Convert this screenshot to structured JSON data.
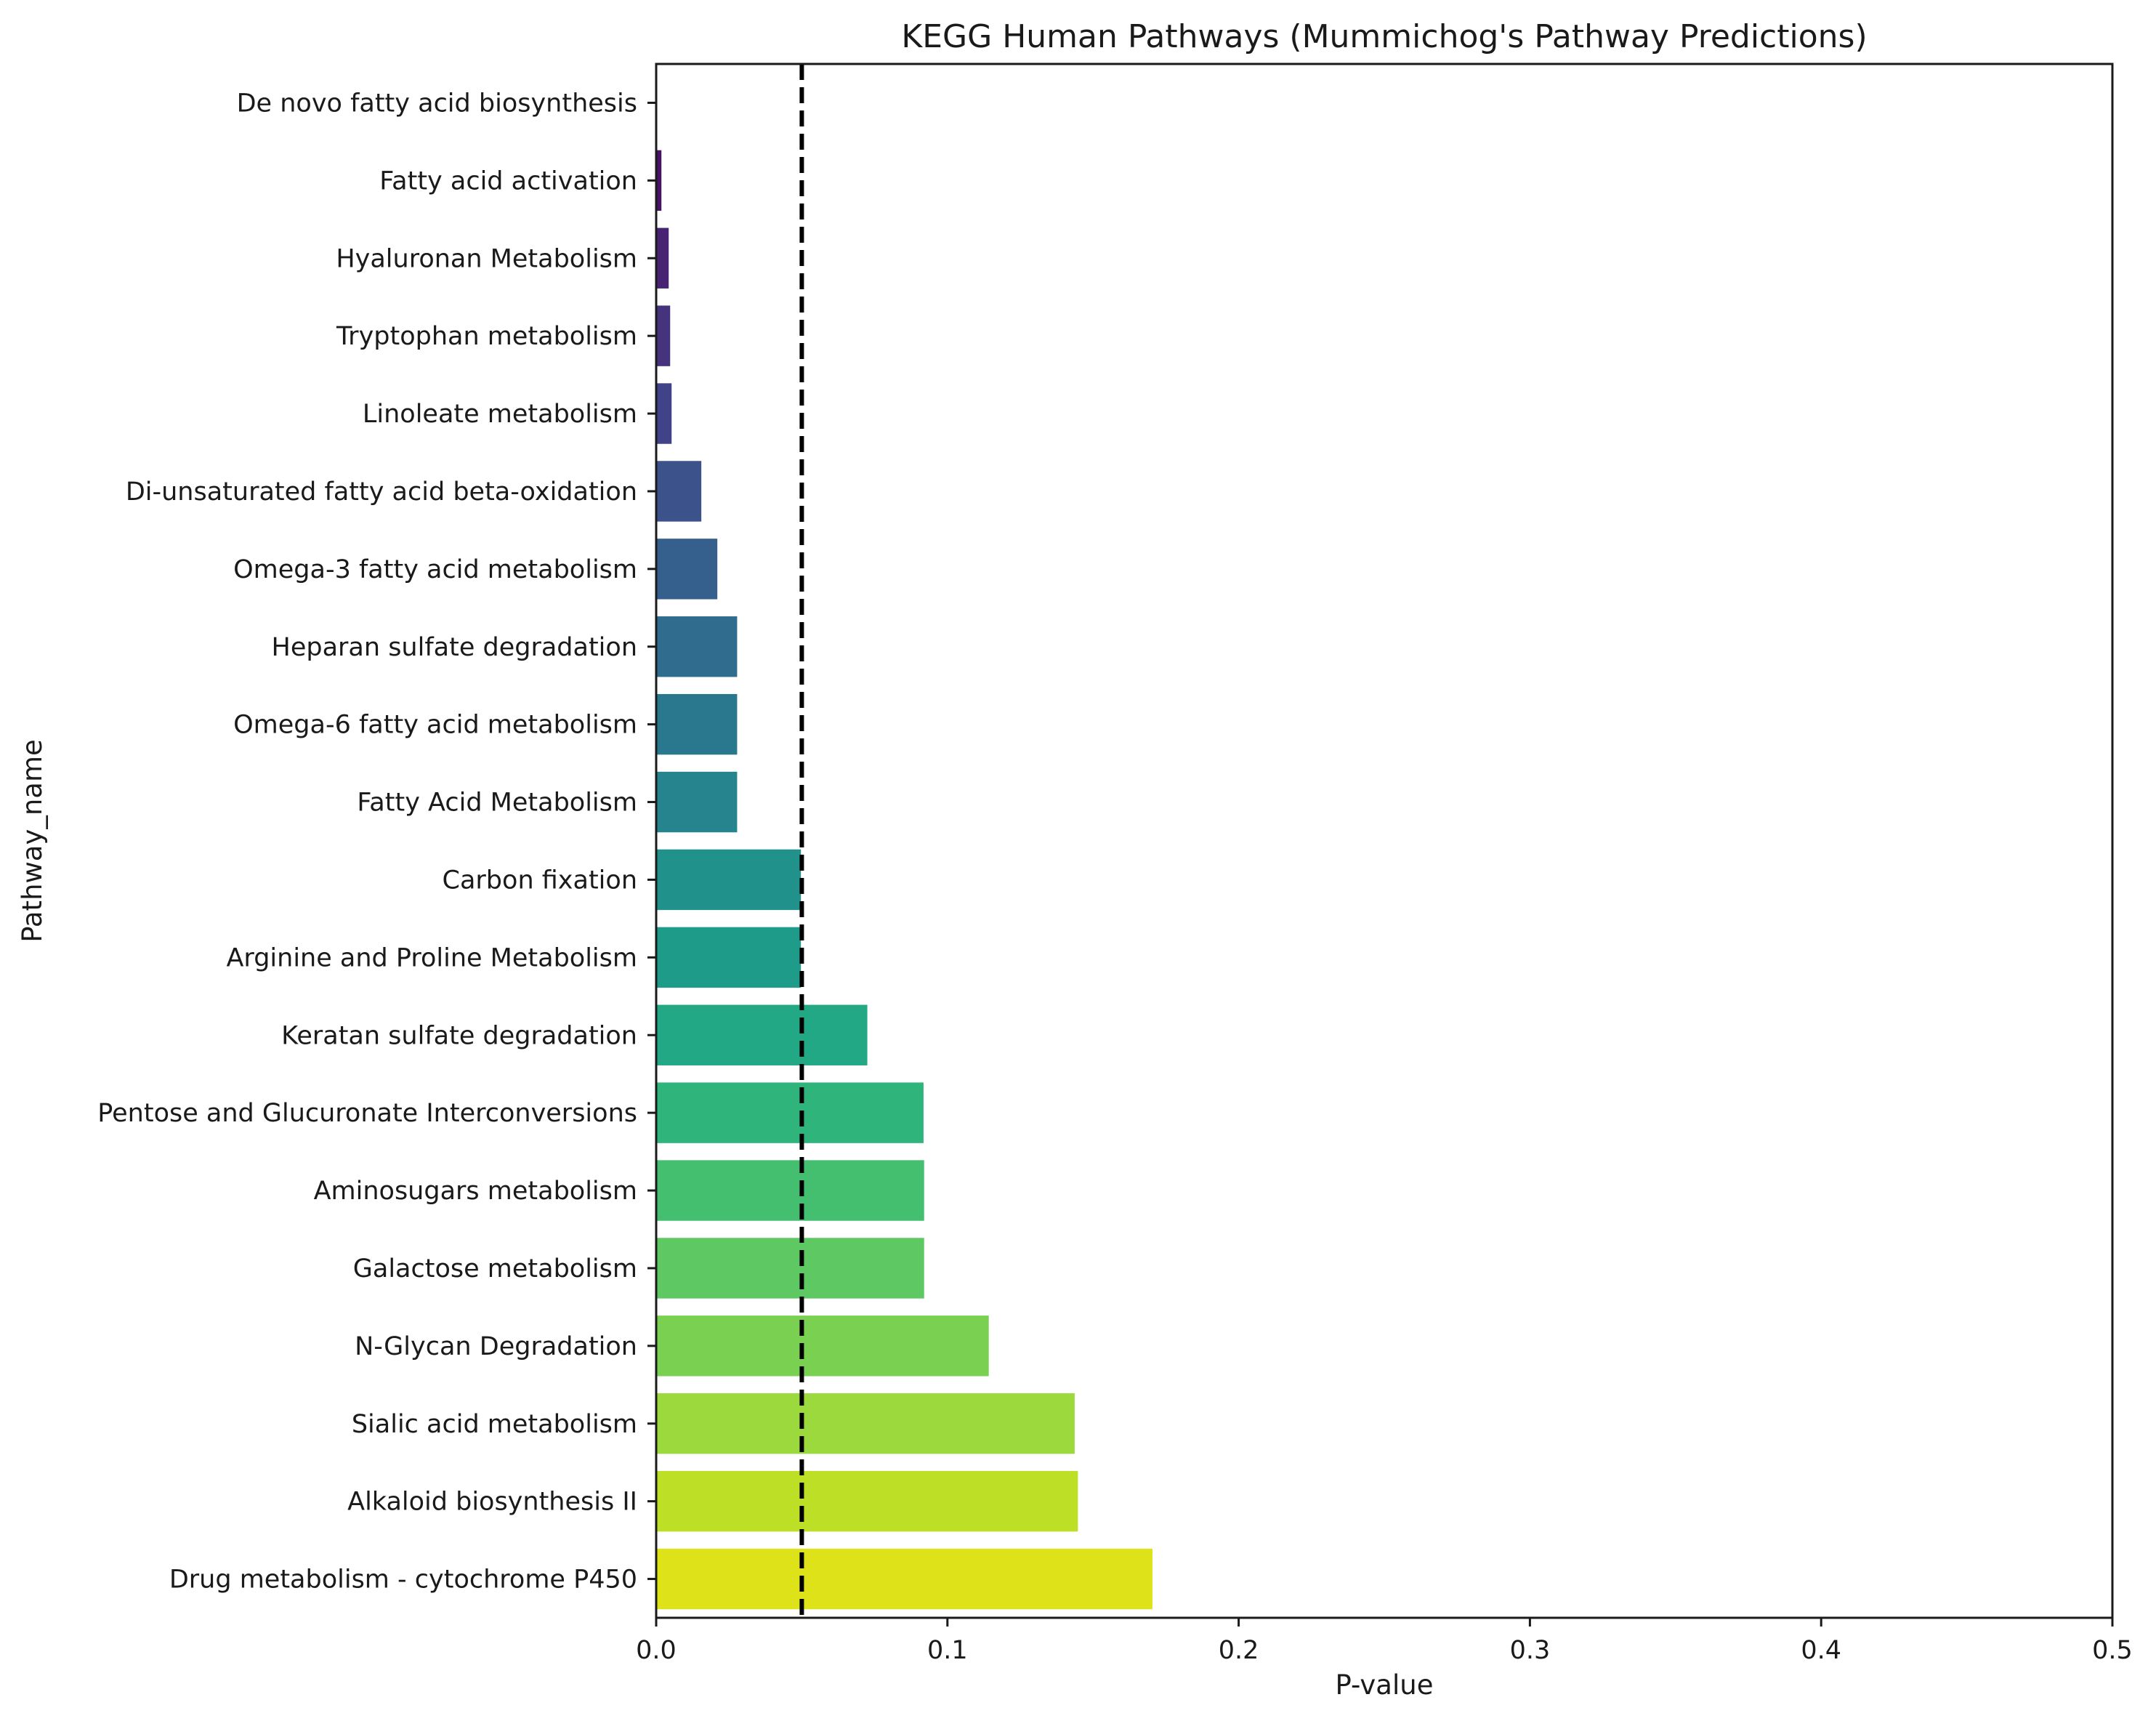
{
  "chart_data": {
    "type": "bar",
    "orientation": "horizontal",
    "title": "KEGG Human Pathways (Mummichog's Pathway Predictions)",
    "xlabel": "P-value",
    "ylabel": "Pathway_name",
    "xlim": [
      0,
      0.5
    ],
    "xticks": [
      0,
      0.1,
      0.2,
      0.3,
      0.4,
      0.5
    ],
    "xtick_labels": [
      "0.0",
      "0.1",
      "0.2",
      "0.3",
      "0.4",
      "0.5"
    ],
    "grid": false,
    "threshold_line": {
      "x": 0.05,
      "style": "dashed",
      "color": "#000000"
    },
    "categories": [
      "De novo fatty acid biosynthesis",
      "Fatty acid activation",
      "Hyaluronan Metabolism",
      "Tryptophan metabolism",
      "Linoleate metabolism",
      "Di-unsaturated fatty acid beta-oxidation",
      "Omega-3 fatty acid metabolism",
      "Heparan sulfate degradation",
      "Omega-6 fatty acid metabolism",
      "Fatty Acid Metabolism",
      "Carbon fixation",
      "Arginine and Proline Metabolism",
      "Keratan sulfate degradation",
      "Pentose and Glucuronate Interconversions",
      "Aminosugars metabolism",
      "Galactose metabolism",
      "N-Glycan Degradation",
      "Sialic acid metabolism",
      "Alkaloid biosynthesis II",
      "Drug metabolism - cytochrome P450"
    ],
    "values": [
      0.0003,
      0.0018,
      0.0043,
      0.0048,
      0.0053,
      0.0155,
      0.021,
      0.0278,
      0.0278,
      0.0278,
      0.0497,
      0.0497,
      0.0725,
      0.0918,
      0.092,
      0.092,
      0.1142,
      0.1437,
      0.1448,
      0.1704
    ],
    "colors": [
      "#440154",
      "#471365",
      "#482374",
      "#45337d",
      "#404387",
      "#3b528b",
      "#355f8d",
      "#2f6c8e",
      "#2a788e",
      "#25848e",
      "#21918c",
      "#1e9c89",
      "#22a884",
      "#2fb47c",
      "#44bf70",
      "#5ec962",
      "#7ad151",
      "#9bd93c",
      "#bddf26",
      "#dde318"
    ]
  }
}
